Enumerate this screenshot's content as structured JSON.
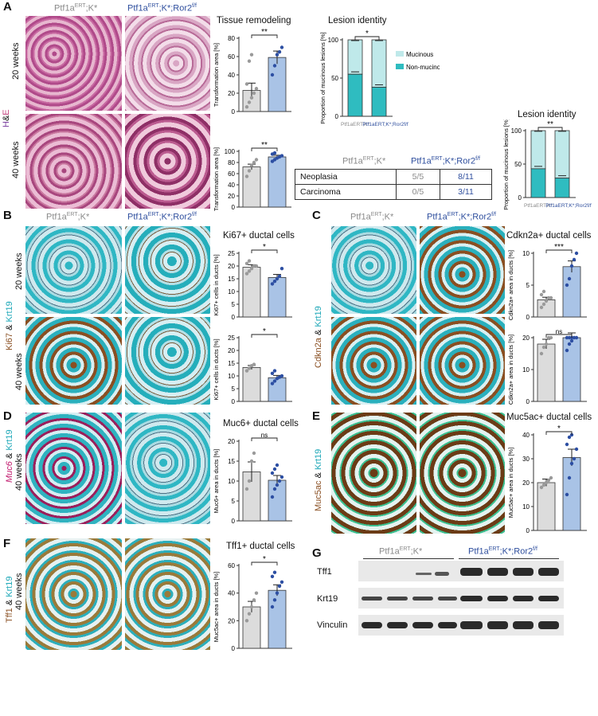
{
  "panel_labels": {
    "A": "A",
    "B": "B",
    "C": "C",
    "D": "D",
    "E": "E",
    "F": "F",
    "G": "G"
  },
  "genotypes": {
    "ctrl_pre": "Ptf1a",
    "ctrl_sup": "ERT",
    "ctrl_post": ";K*",
    "mut_pre": "Ptf1a",
    "mut_sup": "ERT",
    "mut_post": ";K*;Ror2",
    "mut_sup2": "f/f"
  },
  "timepoints": {
    "w20": "20 weeks",
    "w40": "40 weeks"
  },
  "stains": {
    "he_h": "H",
    "he_amp": "&",
    "he_e": "E",
    "ki67": "Ki67",
    "cdkn2a": "Cdkn2a",
    "muc6": "Muc6",
    "muc5ac": "Muc5ac",
    "tff1": "Tff1",
    "amp": "&",
    "krt19": "Krt19"
  },
  "titles": {
    "tissue": "Tissue remodeling",
    "lesion": "Lesion identity",
    "ki67": "Ki67+ ductal cells",
    "cdkn2a": "Cdkn2a+ ductal cells",
    "muc6": "Muc6+ ductal cells",
    "muc5ac": "Muc5ac+ ductal cells",
    "tff1": "Tff1+ ductal cells"
  },
  "table": {
    "rows": [
      {
        "label": "Neoplasia",
        "ctrl": "5/5",
        "mut": "8/11"
      },
      {
        "label": "Carcinoma",
        "ctrl": "0/5",
        "mut": "3/11"
      }
    ]
  },
  "blot": {
    "labels": [
      "Tff1",
      "Krt19",
      "Vinculin"
    ]
  },
  "colors": {
    "ctrl_bar": "#dcdcdc",
    "mut_bar": "#a9c3e6",
    "ctrl_dot": "#9a9a9a",
    "mut_dot": "#2d4fa3",
    "mucinous": "#bfe9ea",
    "nonmucinous": "#2fbcc0"
  },
  "chart_data": [
    {
      "id": "A1",
      "type": "bar",
      "ylabel": "Transformation area [%]",
      "ylim": [
        0,
        80
      ],
      "ticks": [
        0,
        20,
        40,
        60,
        80
      ],
      "sig": "**",
      "values": [
        23,
        59
      ],
      "errors": [
        8,
        7
      ],
      "points": [
        [
          5,
          10,
          15,
          20,
          25,
          30,
          55,
          62
        ],
        [
          40,
          50,
          62,
          65,
          70
        ]
      ]
    },
    {
      "id": "A2",
      "type": "bar",
      "ylabel": "Transformation area [%]",
      "ylim": [
        0,
        100
      ],
      "ticks": [
        0,
        20,
        40,
        60,
        80,
        100
      ],
      "sig": "**",
      "values": [
        72,
        90
      ],
      "errors": [
        5,
        3
      ],
      "points": [
        [
          55,
          65,
          75,
          80,
          85
        ],
        [
          82,
          85,
          88,
          90,
          92,
          95,
          97
        ]
      ]
    },
    {
      "id": "A3",
      "type": "stacked",
      "ylabel": "Proportion of mucinous lesions [%]",
      "ylim": [
        0,
        100
      ],
      "ticks": [
        0,
        50,
        100
      ],
      "sig": "*",
      "legend": [
        "Mucinous",
        "Non-mucinous"
      ],
      "series": [
        {
          "name": "Non-mucinous",
          "values": [
            55,
            38
          ]
        },
        {
          "name": "Mucinous",
          "values": [
            45,
            62
          ]
        }
      ]
    },
    {
      "id": "A4",
      "type": "stacked",
      "ylabel": "Proportion of mucinous lesions [%]",
      "ylim": [
        0,
        100
      ],
      "ticks": [
        0,
        50,
        100
      ],
      "sig": "**",
      "series": [
        {
          "name": "Non-mucinous",
          "values": [
            43,
            29
          ]
        },
        {
          "name": "Mucinous",
          "values": [
            57,
            71
          ]
        }
      ]
    },
    {
      "id": "B1",
      "type": "bar",
      "ylabel": "Ki67+ cells in ducts [%]",
      "ylim": [
        0,
        25
      ],
      "ticks": [
        0,
        5,
        10,
        15,
        20,
        25
      ],
      "sig": "*",
      "values": [
        19.5,
        15.5
      ],
      "errors": [
        1,
        1.2
      ],
      "points": [
        [
          17,
          18,
          19,
          20,
          20,
          21,
          22
        ],
        [
          13,
          14,
          15,
          16,
          19
        ]
      ]
    },
    {
      "id": "B2",
      "type": "bar",
      "ylabel": "Ki67+ cells in ducts [%]",
      "ylim": [
        0,
        25
      ],
      "ticks": [
        0,
        5,
        10,
        15,
        20,
        25
      ],
      "sig": "*",
      "values": [
        13.3,
        9.3
      ],
      "errors": [
        0.8,
        0.9
      ],
      "points": [
        [
          12,
          13,
          14,
          14.5
        ],
        [
          7,
          8,
          9,
          9.5,
          10,
          11,
          12
        ]
      ]
    },
    {
      "id": "C1",
      "type": "bar",
      "ylabel": "Cdkn2a+ area in ducts [%]",
      "ylim": [
        0,
        10
      ],
      "ticks": [
        0,
        5,
        10
      ],
      "sig": "***",
      "values": [
        2.7,
        7.9
      ],
      "errors": [
        0.4,
        0.9
      ],
      "points": [
        [
          1.5,
          2,
          2.5,
          3,
          3,
          3.5,
          4
        ],
        [
          5,
          6,
          8,
          9,
          10
        ]
      ]
    },
    {
      "id": "C2",
      "type": "bar",
      "ylabel": "Cdkn2a+ area in ducts [%]",
      "ylim": [
        0,
        20
      ],
      "ticks": [
        0,
        10,
        20
      ],
      "sig": "ns",
      "values": [
        18,
        20
      ],
      "errors": [
        1.5,
        1.5
      ],
      "points": [
        [
          15,
          17,
          18,
          20,
          21
        ],
        [
          16,
          18,
          19,
          20,
          21,
          22,
          23,
          24
        ]
      ]
    },
    {
      "id": "D1",
      "type": "bar",
      "ylabel": "Muc6+ area in ducts [%]",
      "ylim": [
        0,
        20
      ],
      "ticks": [
        0,
        5,
        10,
        15,
        20
      ],
      "sig": "ns",
      "values": [
        12.3,
        10.2
      ],
      "errors": [
        2.5,
        1.2
      ],
      "points": [
        [
          8,
          10,
          15,
          17
        ],
        [
          6,
          8,
          9,
          10,
          11,
          12,
          13,
          14
        ]
      ]
    },
    {
      "id": "E1",
      "type": "bar",
      "ylabel": "Muc5ac+ area in ducts [%]",
      "ylim": [
        0,
        40
      ],
      "ticks": [
        0,
        10,
        20,
        30,
        40
      ],
      "sig": "*",
      "values": [
        20,
        30.5
      ],
      "errors": [
        1.5,
        3.5
      ],
      "points": [
        [
          18,
          19,
          20,
          21,
          22
        ],
        [
          15,
          22,
          28,
          30,
          34,
          36,
          39,
          40
        ]
      ]
    },
    {
      "id": "F1",
      "type": "bar",
      "ylabel": "Muc5ac+ area in ducts [%]",
      "ylim": [
        0,
        60
      ],
      "ticks": [
        0,
        20,
        40,
        60
      ],
      "sig": "*",
      "values": [
        30,
        42
      ],
      "errors": [
        4,
        4
      ],
      "points": [
        [
          20,
          25,
          30,
          35,
          40
        ],
        [
          30,
          35,
          40,
          45,
          48,
          52,
          55
        ]
      ]
    }
  ]
}
